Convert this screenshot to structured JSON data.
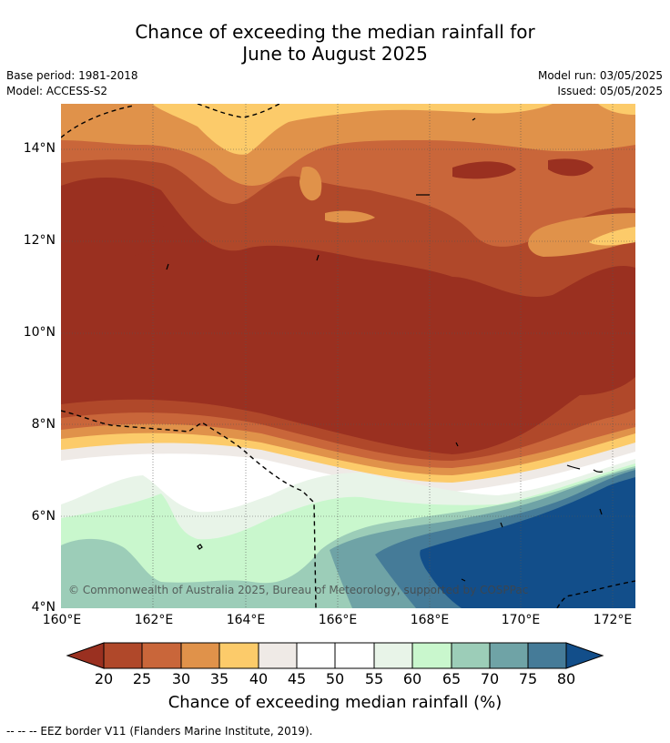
{
  "title": {
    "line1": "Chance of exceeding the median rainfall for",
    "line2": "June to August 2025"
  },
  "meta": {
    "base_period": "Base period: 1981-2018",
    "model": "Model: ACCESS-S2",
    "model_run": "Model run: 03/05/2025",
    "issued": "Issued: 05/05/2025"
  },
  "axes": {
    "lat_labels": [
      "14°N",
      "12°N",
      "10°N",
      "8°N",
      "6°N",
      "4°N"
    ],
    "lon_labels": [
      "160°E",
      "162°E",
      "164°E",
      "166°E",
      "168°E",
      "170°E",
      "172°E"
    ]
  },
  "copyright": "© Commonwealth of Australia 2025, Bureau of Meteorology, supported by COSPPac",
  "colorbar": {
    "title": "Chance of exceeding median rainfall (%)",
    "ticks": [
      "20",
      "25",
      "30",
      "35",
      "40",
      "45",
      "50",
      "55",
      "60",
      "65",
      "70",
      "75",
      "80"
    ],
    "colors": {
      "below_20": "#9a3020",
      "c20_25": "#b0482a",
      "c25_30": "#c9663a",
      "c30_35": "#e0924a",
      "c35_40": "#fccb6a",
      "c40_45": "#efeae6",
      "c45_50": "#ffffff",
      "c50_55": "#ffffff",
      "c55_60": "#e8f4e8",
      "c60_65": "#c9f7cd",
      "c65_70": "#9ccdb8",
      "c70_75": "#6fa3a6",
      "c75_80": "#457b98",
      "above_80": "#124e8a"
    }
  },
  "footer": "--  --  -- EEZ border V11 (Flanders Marine Institute, 2019)."
}
